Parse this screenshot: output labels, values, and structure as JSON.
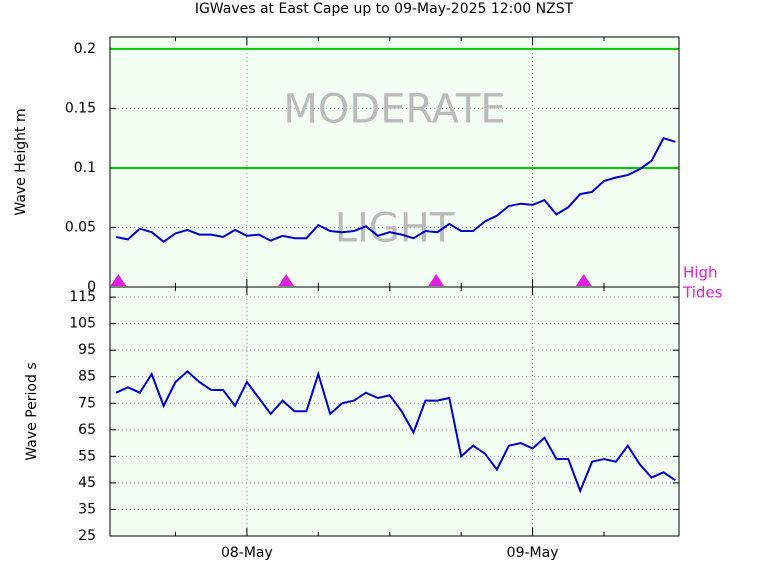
{
  "chart_data": [
    {
      "type": "line",
      "title": "IGWaves at East Cape up to 09-May-2025 12:00 NZST",
      "ylabel": "Wave Height m",
      "x": [
        13,
        14,
        15,
        16,
        17,
        18,
        19,
        20,
        21,
        22,
        23,
        24,
        25,
        26,
        27,
        28,
        29,
        30,
        31,
        32,
        33,
        34,
        35,
        36,
        37,
        38,
        39,
        40,
        41,
        42,
        43,
        44,
        45,
        46,
        47,
        48,
        49,
        50,
        51,
        52,
        53,
        54,
        55,
        56,
        57,
        58,
        59,
        60
      ],
      "series": [
        {
          "name": "Wave Height",
          "color": "#0000cc",
          "values": [
            0.042,
            0.04,
            0.049,
            0.046,
            0.038,
            0.045,
            0.048,
            0.044,
            0.044,
            0.042,
            0.048,
            0.043,
            0.044,
            0.039,
            0.043,
            0.041,
            0.041,
            0.052,
            0.047,
            0.046,
            0.047,
            0.051,
            0.043,
            0.046,
            0.044,
            0.041,
            0.047,
            0.046,
            0.053,
            0.047,
            0.047,
            0.055,
            0.06,
            0.068,
            0.07,
            0.069,
            0.073,
            0.061,
            0.067,
            0.078,
            0.08,
            0.089,
            0.092,
            0.094,
            0.099,
            0.106,
            0.125,
            0.122
          ]
        }
      ],
      "xlim": [
        12.5,
        60.3
      ],
      "xticks": [
        24,
        48
      ],
      "xminorticks": [
        18,
        30,
        36,
        42,
        54
      ],
      "ylim": [
        0,
        0.21
      ],
      "yticks": [
        0,
        0.05,
        0.1,
        0.15,
        0.2
      ],
      "grid": true,
      "bands": [
        {
          "label": "LIGHT",
          "from": 0,
          "to": 0.1,
          "color": "#00cc00"
        },
        {
          "label": "MODERATE",
          "from": 0.1,
          "to": 0.2,
          "color": "#00cc00"
        }
      ],
      "tides": {
        "label": [
          "High",
          "Tides"
        ],
        "color": "#e020e0",
        "x": [
          13.2,
          27.3,
          39.9,
          52.3
        ]
      }
    },
    {
      "type": "line",
      "ylabel": "Wave Period s",
      "x": [
        13,
        14,
        15,
        16,
        17,
        18,
        19,
        20,
        21,
        22,
        23,
        24,
        25,
        26,
        27,
        28,
        29,
        30,
        31,
        32,
        33,
        34,
        35,
        36,
        37,
        38,
        39,
        40,
        41,
        42,
        43,
        44,
        45,
        46,
        47,
        48,
        49,
        50,
        51,
        52,
        53,
        54,
        55,
        56,
        57,
        58,
        59,
        60
      ],
      "series": [
        {
          "name": "Wave Period",
          "color": "#0000cc",
          "values": [
            79,
            81,
            79,
            86,
            74,
            83,
            87,
            83,
            80,
            80,
            74,
            83,
            77,
            71,
            76,
            72,
            72,
            86,
            71,
            75,
            76,
            79,
            77,
            78,
            72,
            64,
            76,
            76,
            77,
            55,
            59,
            56,
            50,
            59,
            60,
            58,
            62,
            54,
            54,
            42,
            53,
            54,
            53,
            59,
            52,
            47,
            49,
            46
          ]
        }
      ],
      "xlim": [
        12.5,
        60.3
      ],
      "xticks": [
        {
          "value": 24,
          "label": "08-May"
        },
        {
          "value": 48,
          "label": "09-May"
        }
      ],
      "xminorticks": [
        18,
        30,
        36,
        42,
        54
      ],
      "ylim": [
        25,
        118.8
      ],
      "yticks": [
        25,
        35,
        45,
        55,
        65,
        75,
        85,
        95,
        105,
        115
      ],
      "grid": true
    }
  ]
}
